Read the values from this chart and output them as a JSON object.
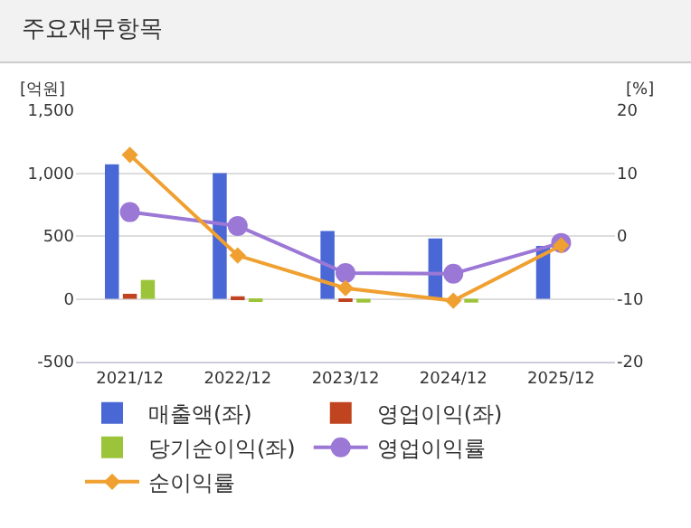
{
  "chart_data": {
    "type": "bar",
    "title": "주요재무항목",
    "ylabel": "[억원]",
    "y2label": "[%]",
    "categories": [
      "2021/12",
      "2022/12",
      "2023/12",
      "2024/12",
      "2025/12"
    ],
    "series": [
      {
        "name": "매출액(좌)",
        "color": "#4a67d6",
        "values": [
          1070,
          1000,
          540,
          480,
          420
        ]
      },
      {
        "name": "영업이익(좌)",
        "color": "#c0441f",
        "values": [
          40,
          20,
          -20,
          -10,
          null
        ]
      },
      {
        "name": "당기순이익(좌)",
        "color": "#9bc43a",
        "values": [
          150,
          -20,
          -30,
          -30,
          null
        ]
      },
      {
        "name": "영업이익률",
        "type": "line",
        "axis": "y2",
        "marker": "circle",
        "color": "#9b77d6",
        "values": [
          3.8,
          1.6,
          -5.9,
          -6.0,
          -1.1
        ]
      },
      {
        "name": "순이익률",
        "type": "line",
        "axis": "y2",
        "marker": "diamond",
        "color": "#f0a030",
        "values": [
          12.9,
          -3.1,
          -8.3,
          -10.3,
          -1.5
        ]
      }
    ],
    "ylim": [
      -500,
      1500
    ],
    "yticks": [
      {
        "value": -500,
        "label": "-500"
      },
      0,
      500,
      {
        "value": 1000,
        "label": "1,000"
      },
      {
        "value": 1500,
        "label": "1,500"
      }
    ],
    "y2lim": [
      -20,
      20
    ],
    "y2ticks": [
      -20,
      -10,
      0,
      10,
      20
    ],
    "grid": "y",
    "legend": "bottom"
  }
}
